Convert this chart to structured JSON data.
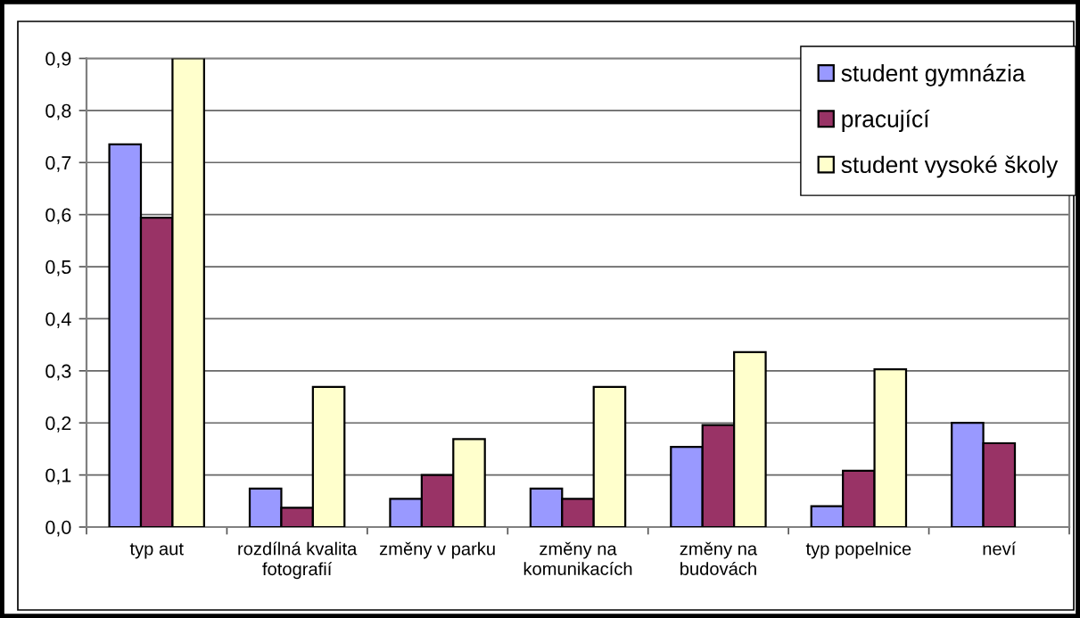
{
  "chart_data": {
    "type": "bar",
    "categories": [
      "typ aut",
      "rozdílná kvalita\nfotografií",
      "změny v parku",
      "změny na\nkomunikacích",
      "změny na\nbudovách",
      "typ popelnice",
      "neví"
    ],
    "series": [
      {
        "name": "student gymnázia",
        "color": "#9999ff",
        "values": [
          0.735,
          0.074,
          0.054,
          0.074,
          0.154,
          0.04,
          0.2
        ]
      },
      {
        "name": "pracující",
        "color": "#993366",
        "values": [
          0.594,
          0.037,
          0.1,
          0.054,
          0.196,
          0.108,
          0.161
        ]
      },
      {
        "name": "student vysoké školy",
        "color": "#ffffcc",
        "values": [
          0.9,
          0.269,
          0.169,
          0.269,
          0.336,
          0.303,
          null
        ]
      }
    ],
    "ylim": [
      0,
      0.9
    ],
    "yticks": [
      {
        "value": 0,
        "label": "0,0"
      },
      {
        "value": 0.1,
        "label": "0,1"
      },
      {
        "value": 0.2,
        "label": "0,2"
      },
      {
        "value": 0.3,
        "label": "0,3"
      },
      {
        "value": 0.4,
        "label": "0,4"
      },
      {
        "value": 0.5,
        "label": "0,5"
      },
      {
        "value": 0.6,
        "label": "0,6"
      },
      {
        "value": 0.7,
        "label": "0,7"
      },
      {
        "value": 0.8,
        "label": "0,8"
      },
      {
        "value": 0.9,
        "label": "0,9"
      }
    ],
    "grid": "y",
    "legend": "top right"
  }
}
